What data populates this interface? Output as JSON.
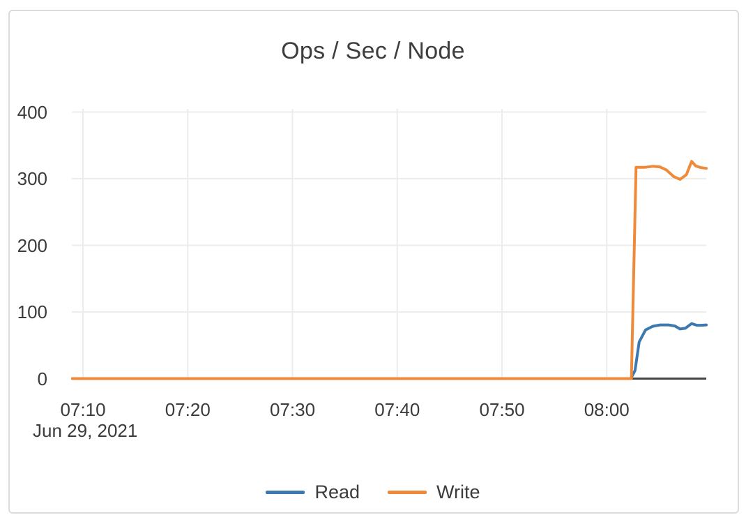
{
  "window": {
    "background": "#ffffff",
    "panel_border_color": "#dcdcdc"
  },
  "chart_data": {
    "type": "line",
    "title": "Ops / Sec / Node",
    "title_color": "#3d3d3d",
    "text_color": "#3b3b3b",
    "axis_color": "#454545",
    "grid": {
      "show": true,
      "color": "#ececec"
    },
    "x_axis": {
      "date_label": "Jun 29, 2021",
      "tick_labels": [
        "07:10",
        "07:20",
        "07:30",
        "07:40",
        "07:50",
        "08:00"
      ],
      "ticks_minutes": [
        430,
        440,
        450,
        460,
        470,
        480
      ],
      "range_minutes": [
        429,
        489.5
      ]
    },
    "y_axis": {
      "tick_labels": [
        "0",
        "100",
        "200",
        "300",
        "400"
      ],
      "ticks": [
        0,
        100,
        200,
        300,
        400
      ],
      "range": [
        0,
        404
      ]
    },
    "legend": {
      "position": "bottom",
      "entries": [
        {
          "label": "Read",
          "color": "#3d79af"
        },
        {
          "label": "Write",
          "color": "#ee8a3a"
        }
      ]
    },
    "series": [
      {
        "name": "Read",
        "color": "#3d79af",
        "points": [
          [
            429,
            0
          ],
          [
            445,
            0
          ],
          [
            460,
            0
          ],
          [
            475,
            0
          ],
          [
            482.3,
            0
          ],
          [
            482.7,
            12
          ],
          [
            483.1,
            55
          ],
          [
            483.7,
            73
          ],
          [
            484.4,
            78.5
          ],
          [
            485.1,
            80.5
          ],
          [
            485.9,
            80.5
          ],
          [
            486.5,
            79
          ],
          [
            487.0,
            74.5
          ],
          [
            487.5,
            75.5
          ],
          [
            488.1,
            82.5
          ],
          [
            488.6,
            80
          ],
          [
            489.0,
            80
          ],
          [
            489.5,
            80.5
          ]
        ]
      },
      {
        "name": "Write",
        "color": "#ee8a3a",
        "points": [
          [
            429,
            0
          ],
          [
            445,
            0
          ],
          [
            460,
            0
          ],
          [
            475,
            0
          ],
          [
            482.35,
            0
          ],
          [
            482.8,
            317
          ],
          [
            483.6,
            317
          ],
          [
            484.4,
            318.5
          ],
          [
            485.1,
            317.5
          ],
          [
            485.7,
            313
          ],
          [
            486.4,
            303
          ],
          [
            487.0,
            299
          ],
          [
            487.6,
            306
          ],
          [
            488.1,
            326
          ],
          [
            488.5,
            319
          ],
          [
            489.0,
            316.5
          ],
          [
            489.5,
            315.5
          ]
        ]
      }
    ]
  }
}
